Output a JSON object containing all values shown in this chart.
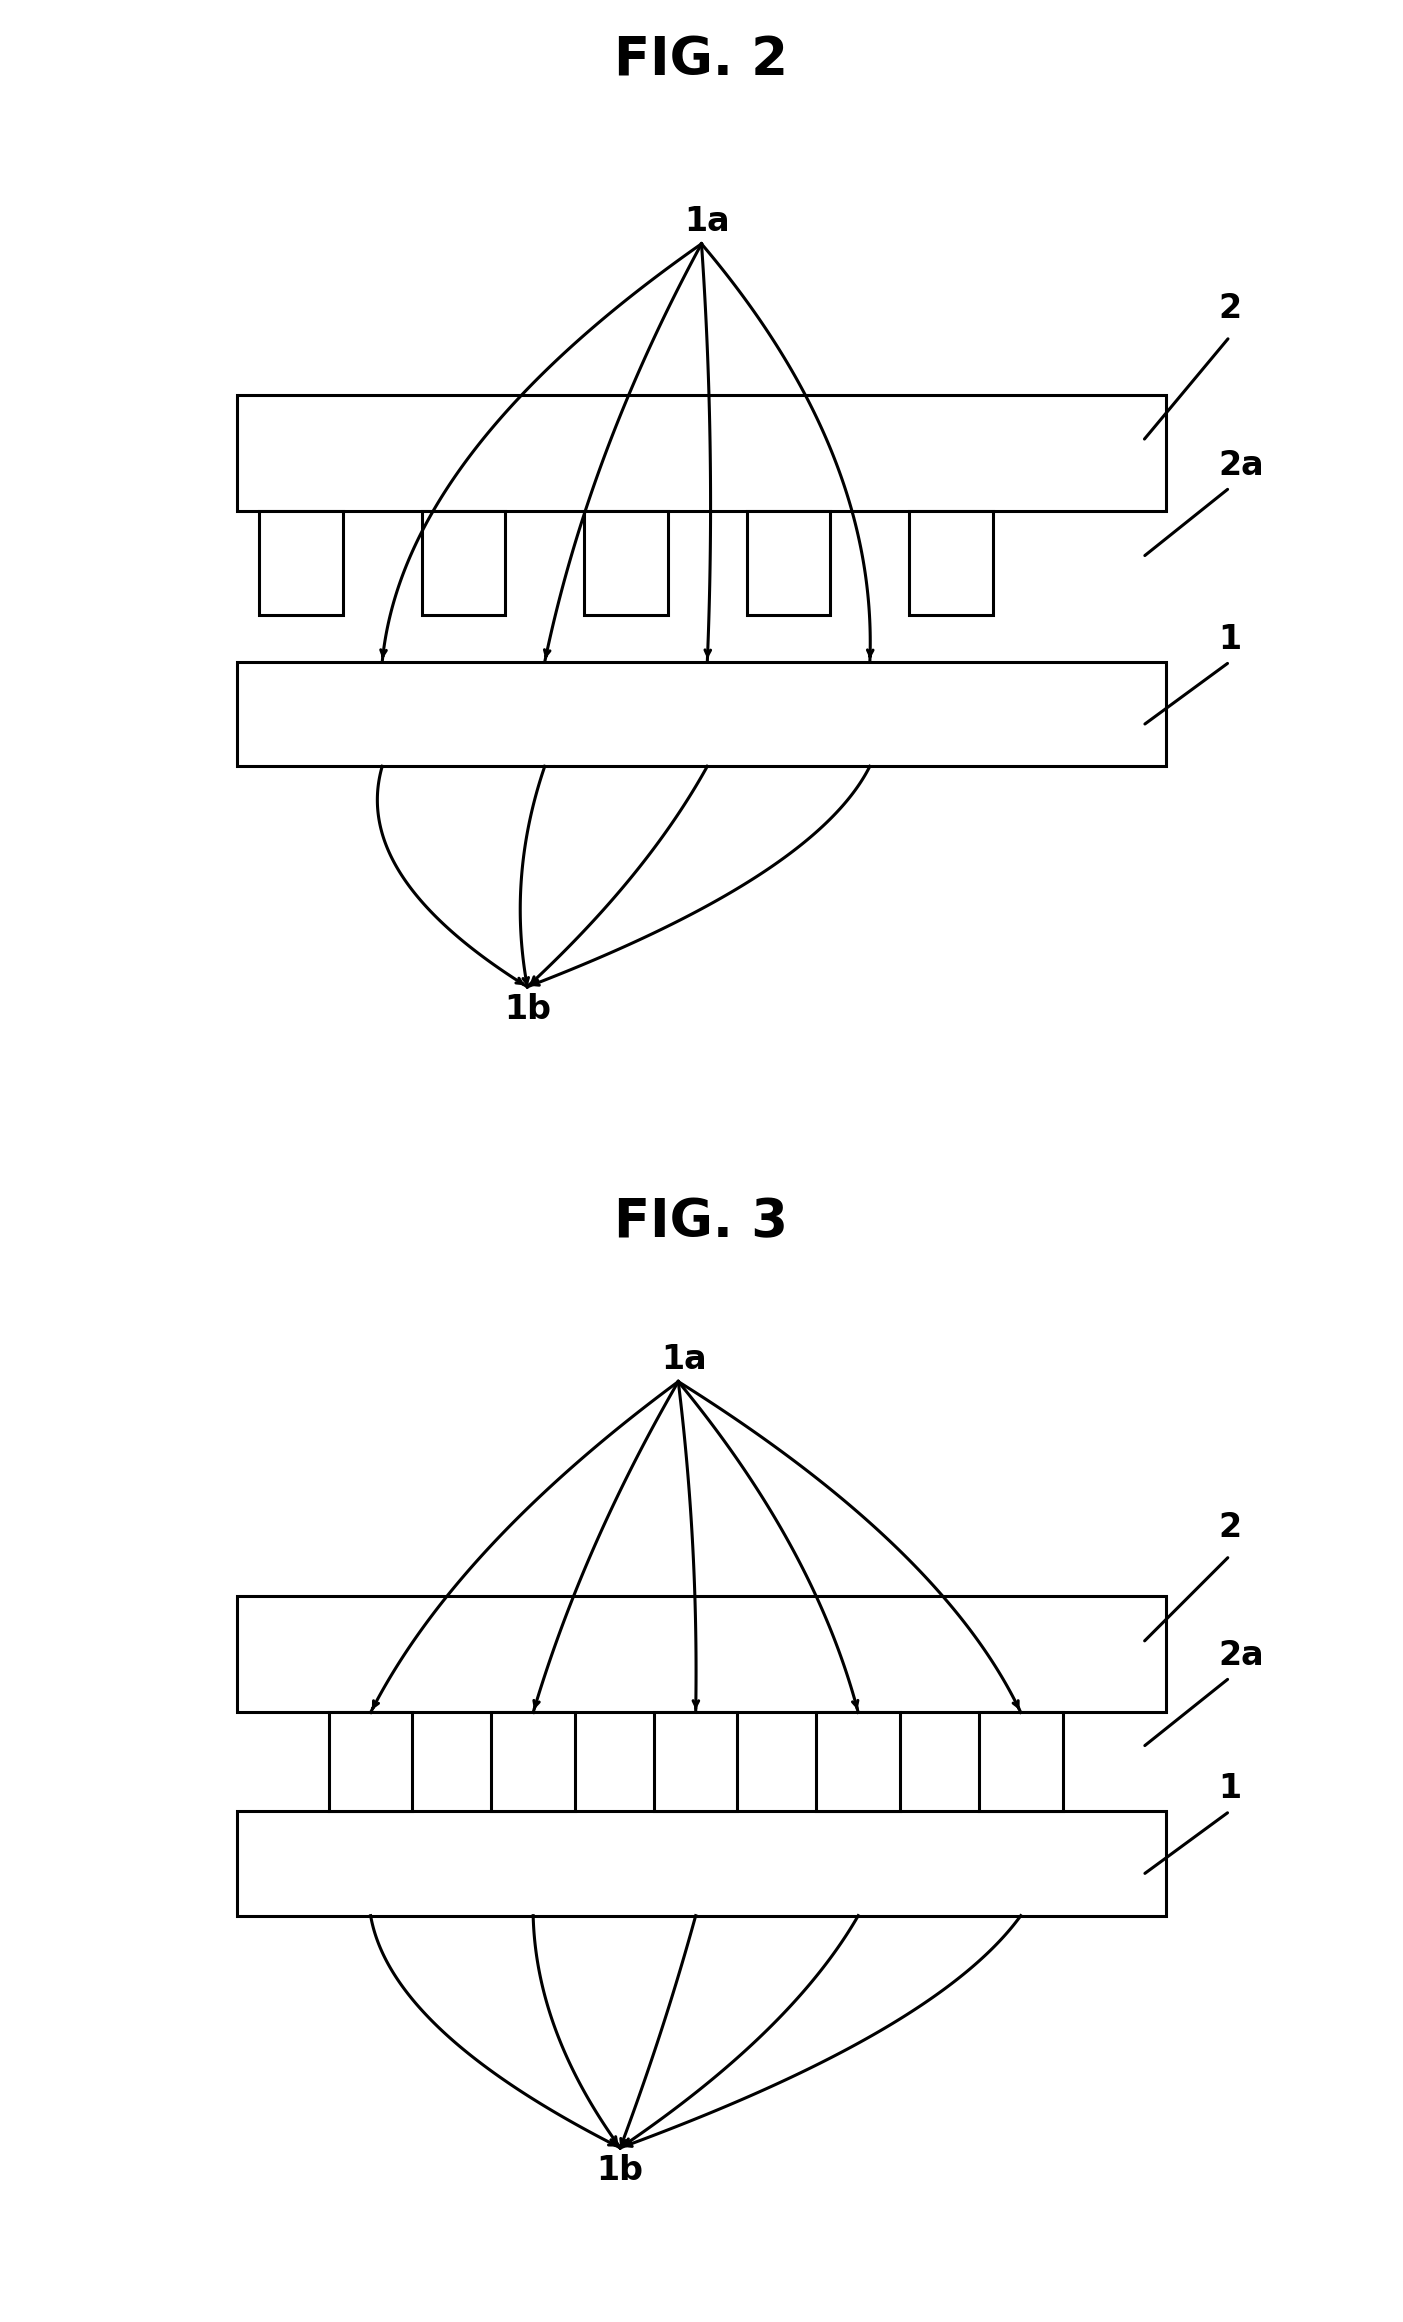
{
  "fig2_title": "FIG. 2",
  "fig3_title": "FIG. 3",
  "bg_color": "#ffffff",
  "line_color": "#000000",
  "label_1a": "1a",
  "label_1b": "1b",
  "label_1": "1",
  "label_2": "2",
  "label_2a": "2a",
  "title_fontsize": 38,
  "label_fontsize": 24,
  "lw": 2.2
}
